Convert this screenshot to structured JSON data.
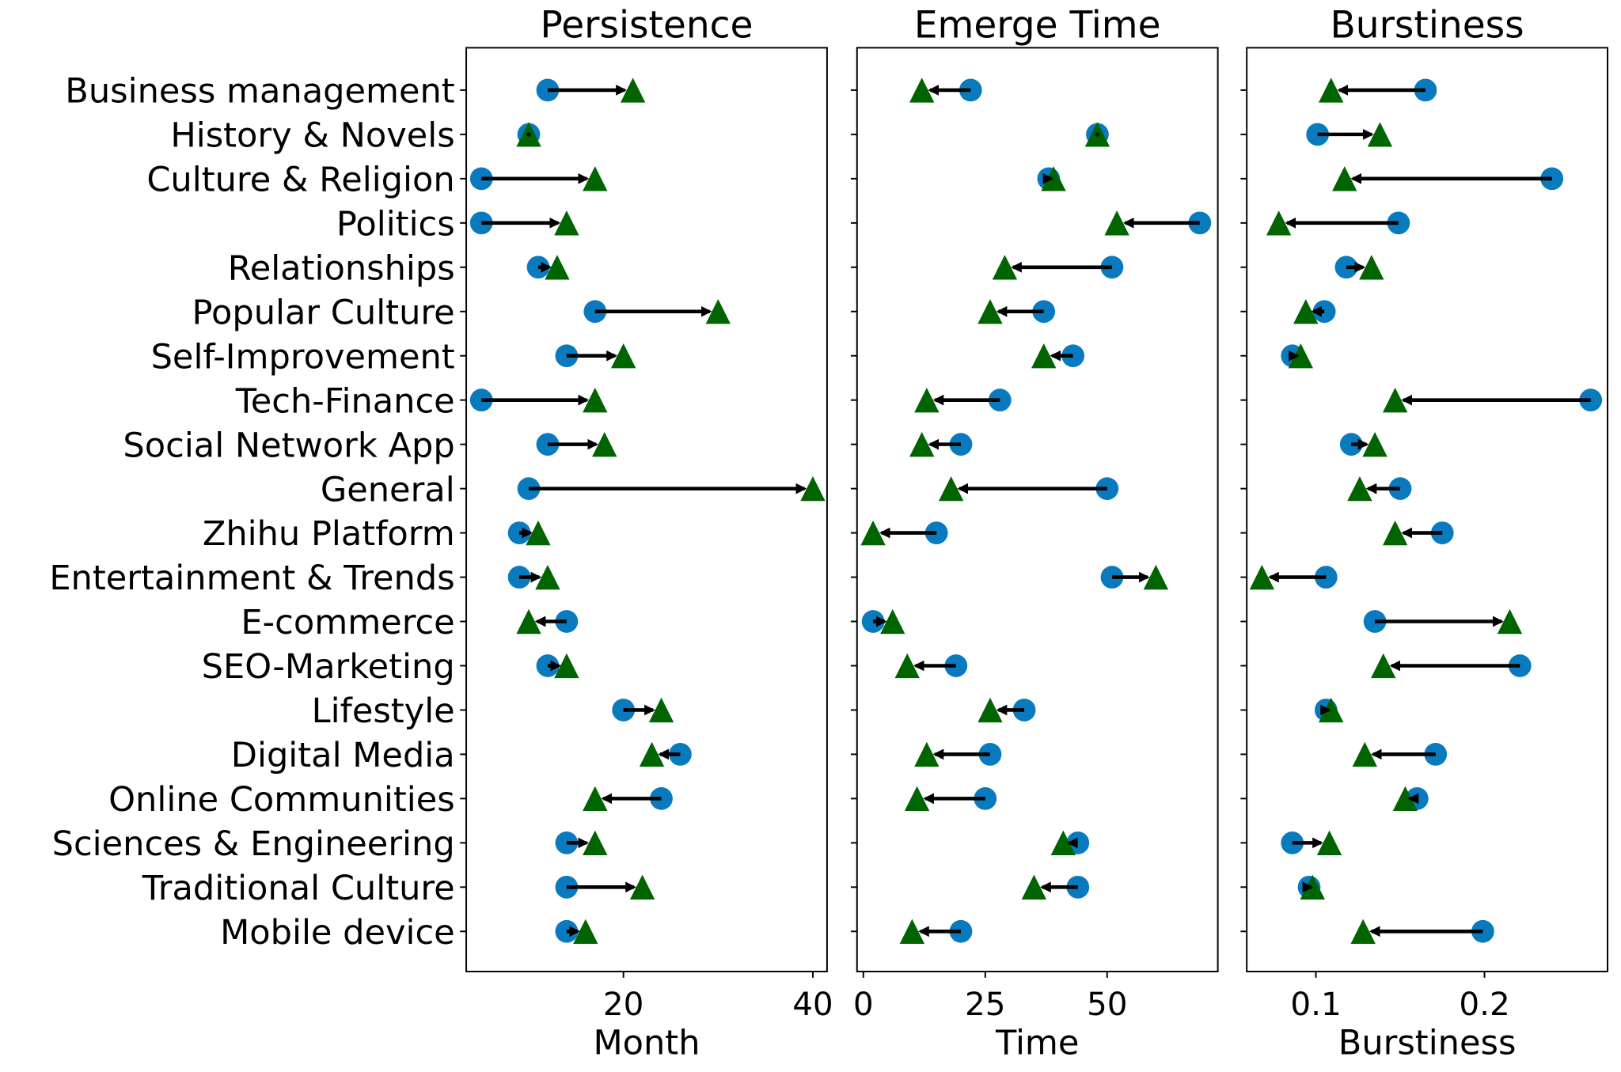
{
  "chart_data": [
    {
      "type": "scatter",
      "title": "Persistence",
      "xlabel": "Month",
      "xlim": [
        3.4,
        41.5
      ],
      "xticks": [
        "20",
        "40"
      ],
      "xtick_values": [
        20,
        40
      ],
      "before": [
        12,
        10,
        5,
        5,
        11,
        17,
        14,
        5,
        12,
        10,
        9,
        9,
        14,
        12,
        20,
        26,
        24,
        14,
        14,
        14
      ],
      "after": [
        21,
        10,
        17,
        14,
        13,
        30,
        20,
        17,
        18,
        40,
        11,
        12,
        10,
        14,
        24,
        23,
        17,
        17,
        22,
        16
      ]
    },
    {
      "type": "scatter",
      "title": "Emerge Time",
      "xlabel": "Time",
      "xlim": [
        -1.3,
        72.7
      ],
      "xticks": [
        "0",
        "25",
        "50"
      ],
      "xtick_values": [
        0,
        25,
        50
      ],
      "before": [
        22,
        48,
        38,
        69,
        51,
        37,
        43,
        28,
        20,
        50,
        15,
        51,
        2,
        19,
        33,
        26,
        25,
        44,
        44,
        20
      ],
      "after": [
        12,
        48,
        39,
        52,
        29,
        26,
        37,
        13,
        12,
        18,
        2,
        60,
        6,
        9,
        26,
        13,
        11,
        41,
        35,
        10
      ]
    },
    {
      "type": "scatter",
      "title": "Burstiness",
      "xlabel": "Burstiness",
      "xlim": [
        0.059,
        0.273
      ],
      "xticks": [
        "0.1",
        "0.2"
      ],
      "xtick_values": [
        0.1,
        0.2
      ],
      "before": [
        0.165,
        0.101,
        0.24,
        0.149,
        0.118,
        0.105,
        0.086,
        0.263,
        0.121,
        0.15,
        0.175,
        0.106,
        0.135,
        0.221,
        0.106,
        0.171,
        0.16,
        0.086,
        0.096,
        0.199
      ],
      "after": [
        0.109,
        0.138,
        0.117,
        0.078,
        0.133,
        0.094,
        0.091,
        0.147,
        0.135,
        0.126,
        0.147,
        0.068,
        0.215,
        0.14,
        0.109,
        0.129,
        0.153,
        0.108,
        0.098,
        0.128
      ]
    }
  ],
  "categories": [
    "Business management",
    "History & Novels",
    "Culture & Religion",
    "Politics",
    "Relationships",
    "Popular Culture",
    "Self-Improvement",
    "Tech-Finance",
    "Social Network App",
    "General",
    "Zhihu Platform",
    "Entertainment & Trends",
    "E-commerce",
    "SEO-Marketing",
    "Lifestyle",
    "Digital Media",
    "Online Communities",
    "Sciences & Engineering",
    "Traditional Culture",
    "Mobile device"
  ],
  "colors": {
    "before": "#0a7abf",
    "after": "#006400",
    "arrow": "#000000"
  }
}
